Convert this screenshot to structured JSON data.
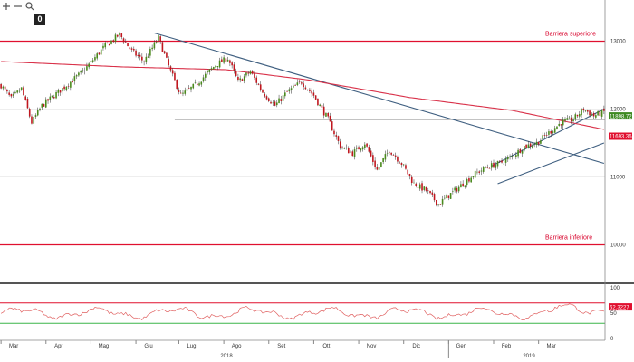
{
  "toolbar": {
    "icons": [
      "plus-icon",
      "minus-icon",
      "zoom-icon"
    ],
    "counter": "0"
  },
  "colors": {
    "price_up": "#4a8a1c",
    "price_down": "#c0171f",
    "ma": "#d9324a",
    "barrier": "#e0102f",
    "support": "#111111",
    "trendline": "#3f5f80",
    "rsi": "#e06060",
    "rsi_upper": "#e0102f",
    "rsi_lower": "#3cb64a"
  },
  "chart_data": [
    {
      "type": "line",
      "subtype": "candlestick",
      "ylim": [
        9500,
        13500
      ],
      "y_ticks": [
        10000,
        11000,
        12000,
        13000
      ],
      "y_ticks_text": [
        "10000",
        "11000",
        "12000",
        "13000"
      ],
      "x_ticks": [
        "Mar",
        "Apr",
        "Mag",
        "Giu",
        "Lug",
        "Ago",
        "Set",
        "Ott",
        "Nov",
        "Dic",
        "Gen",
        "Feb",
        "Mar"
      ],
      "year_labels": [
        "2018",
        "2019"
      ],
      "price_anchors": [
        [
          0,
          12350
        ],
        [
          5,
          12150
        ],
        [
          10,
          12300
        ],
        [
          15,
          11800
        ],
        [
          20,
          12050
        ],
        [
          30,
          12300
        ],
        [
          40,
          12550
        ],
        [
          50,
          12900
        ],
        [
          58,
          13100
        ],
        [
          64,
          12850
        ],
        [
          70,
          12700
        ],
        [
          77,
          13050
        ],
        [
          83,
          12550
        ],
        [
          88,
          12200
        ],
        [
          95,
          12350
        ],
        [
          105,
          12650
        ],
        [
          111,
          12750
        ],
        [
          116,
          12400
        ],
        [
          122,
          12550
        ],
        [
          128,
          12250
        ],
        [
          134,
          12050
        ],
        [
          140,
          12250
        ],
        [
          147,
          12400
        ],
        [
          153,
          12200
        ],
        [
          160,
          11850
        ],
        [
          166,
          11450
        ],
        [
          172,
          11350
        ],
        [
          178,
          11500
        ],
        [
          184,
          11100
        ],
        [
          190,
          11400
        ],
        [
          196,
          11200
        ],
        [
          202,
          10900
        ],
        [
          208,
          10800
        ],
        [
          214,
          10600
        ],
        [
          220,
          10750
        ],
        [
          226,
          10900
        ],
        [
          232,
          11050
        ],
        [
          238,
          11150
        ],
        [
          244,
          11200
        ],
        [
          250,
          11300
        ],
        [
          256,
          11450
        ],
        [
          262,
          11500
        ],
        [
          268,
          11650
        ],
        [
          274,
          11800
        ],
        [
          280,
          11850
        ],
        [
          285,
          12000
        ],
        [
          290,
          11900
        ],
        [
          295,
          11960
        ]
      ],
      "series": [
        {
          "name": "11898.7211",
          "last": 11898.7211
        },
        {
          "name": "11693.3632",
          "last": 11693.3632,
          "anchors": [
            [
              0,
              12700
            ],
            [
              60,
              12620
            ],
            [
              110,
              12580
            ],
            [
              150,
              12430
            ],
            [
              200,
              12170
            ],
            [
              250,
              11980
            ],
            [
              295,
              11700
            ]
          ]
        }
      ],
      "annotations": [
        {
          "text": "Barriera superiore",
          "value": 13000
        },
        {
          "text": "Barriera inferiore",
          "value": 10000
        }
      ],
      "support_level": 11850,
      "trendlines": [
        {
          "from": [
            75,
            13120
          ],
          "to": [
            295,
            11200
          ]
        },
        {
          "from": [
            240,
            11160
          ],
          "to": [
            295,
            12000
          ]
        },
        {
          "from": [
            243,
            10900
          ],
          "to": [
            295,
            11500
          ]
        }
      ]
    },
    {
      "type": "line",
      "name": "RSI",
      "ylim": [
        0,
        100
      ],
      "y_ticks": [
        0,
        50,
        100
      ],
      "y_ticks_text": [
        "0",
        "50",
        "100"
      ],
      "levels": [
        70,
        30
      ],
      "series": [
        {
          "name": "62.3227",
          "last": 62.3227
        }
      ]
    }
  ]
}
